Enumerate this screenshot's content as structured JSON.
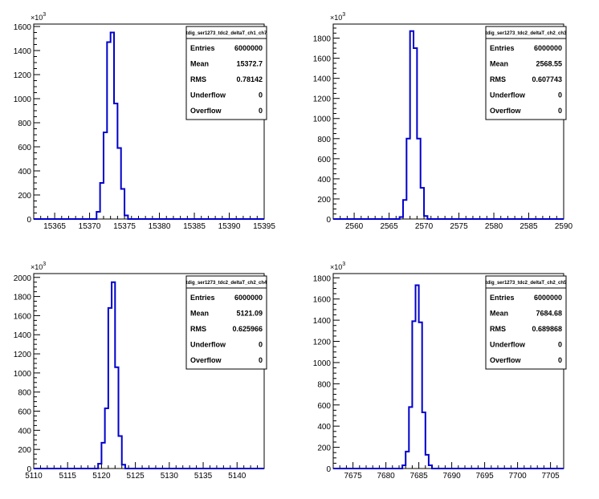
{
  "chart_data": [
    {
      "type": "histogram",
      "title": "tdig_ser1273_tdc2_deltaT_ch1_ch7",
      "y_multiplier": "×10",
      "y_exponent": "3",
      "xlim": [
        15362,
        15395
      ],
      "ylim": [
        0,
        1620
      ],
      "x_ticks": [
        15365,
        15370,
        15375,
        15380,
        15385,
        15390,
        15395
      ],
      "y_ticks": [
        0,
        200,
        400,
        600,
        800,
        1000,
        1200,
        1400,
        1600
      ],
      "bin_width": 0.5,
      "bins": [
        {
          "x": 15371.0,
          "y": 60
        },
        {
          "x": 15371.5,
          "y": 300
        },
        {
          "x": 15372.0,
          "y": 720
        },
        {
          "x": 15372.5,
          "y": 1470
        },
        {
          "x": 15373.0,
          "y": 1550
        },
        {
          "x": 15373.5,
          "y": 960
        },
        {
          "x": 15374.0,
          "y": 590
        },
        {
          "x": 15374.5,
          "y": 250
        },
        {
          "x": 15375.0,
          "y": 30
        }
      ],
      "stats": [
        {
          "label": "Entries",
          "value": "6000000"
        },
        {
          "label": "Mean",
          "value": "15372.7"
        },
        {
          "label": "RMS",
          "value": "0.78142"
        },
        {
          "label": "Underflow",
          "value": "0"
        },
        {
          "label": "Overflow",
          "value": "0"
        }
      ]
    },
    {
      "type": "histogram",
      "title": "tdig_ser1273_tdc2_deltaT_ch2_ch3",
      "y_multiplier": "×10",
      "y_exponent": "3",
      "xlim": [
        2557,
        2590
      ],
      "ylim": [
        0,
        1940
      ],
      "x_ticks": [
        2560,
        2565,
        2570,
        2575,
        2580,
        2585,
        2590
      ],
      "y_ticks": [
        0,
        200,
        400,
        600,
        800,
        1000,
        1200,
        1400,
        1600,
        1800
      ],
      "bin_width": 0.5,
      "bins": [
        {
          "x": 2566.5,
          "y": 20
        },
        {
          "x": 2567.0,
          "y": 190
        },
        {
          "x": 2567.5,
          "y": 800
        },
        {
          "x": 2568.0,
          "y": 1870
        },
        {
          "x": 2568.5,
          "y": 1700
        },
        {
          "x": 2569.0,
          "y": 800
        },
        {
          "x": 2569.5,
          "y": 310
        },
        {
          "x": 2570.0,
          "y": 30
        }
      ],
      "stats": [
        {
          "label": "Entries",
          "value": "6000000"
        },
        {
          "label": "Mean",
          "value": "2568.55"
        },
        {
          "label": "RMS",
          "value": "0.607743"
        },
        {
          "label": "Underflow",
          "value": "0"
        },
        {
          "label": "Overflow",
          "value": "0"
        }
      ]
    },
    {
      "type": "histogram",
      "title": "tdig_ser1273_tdc2_deltaT_ch2_ch4",
      "y_multiplier": "×10",
      "y_exponent": "3",
      "xlim": [
        5110,
        5144
      ],
      "ylim": [
        0,
        2040
      ],
      "x_ticks": [
        5110,
        5115,
        5120,
        5125,
        5130,
        5135,
        5140
      ],
      "y_ticks": [
        0,
        200,
        400,
        600,
        800,
        1000,
        1200,
        1400,
        1600,
        1800,
        2000
      ],
      "bin_width": 0.5,
      "bins": [
        {
          "x": 5119.5,
          "y": 50
        },
        {
          "x": 5120.0,
          "y": 270
        },
        {
          "x": 5120.5,
          "y": 630
        },
        {
          "x": 5121.0,
          "y": 1680
        },
        {
          "x": 5121.5,
          "y": 1950
        },
        {
          "x": 5122.0,
          "y": 1060
        },
        {
          "x": 5122.5,
          "y": 340
        },
        {
          "x": 5123.0,
          "y": 40
        }
      ],
      "stats": [
        {
          "label": "Entries",
          "value": "6000000"
        },
        {
          "label": "Mean",
          "value": "5121.09"
        },
        {
          "label": "RMS",
          "value": "0.625966"
        },
        {
          "label": "Underflow",
          "value": "0"
        },
        {
          "label": "Overflow",
          "value": "0"
        }
      ]
    },
    {
      "type": "histogram",
      "title": "tdig_ser1273_tdc2_deltaT_ch2_ch5",
      "y_multiplier": "×10",
      "y_exponent": "3",
      "xlim": [
        7672,
        7707
      ],
      "ylim": [
        0,
        1840
      ],
      "x_ticks": [
        7675,
        7680,
        7685,
        7690,
        7695,
        7700,
        7705
      ],
      "y_ticks": [
        0,
        200,
        400,
        600,
        800,
        1000,
        1200,
        1400,
        1600,
        1800
      ],
      "bin_width": 0.5,
      "bins": [
        {
          "x": 7682.5,
          "y": 30
        },
        {
          "x": 7683.0,
          "y": 160
        },
        {
          "x": 7683.5,
          "y": 580
        },
        {
          "x": 7684.0,
          "y": 1390
        },
        {
          "x": 7684.5,
          "y": 1730
        },
        {
          "x": 7685.0,
          "y": 1380
        },
        {
          "x": 7685.5,
          "y": 530
        },
        {
          "x": 7686.0,
          "y": 130
        },
        {
          "x": 7686.5,
          "y": 30
        }
      ],
      "stats": [
        {
          "label": "Entries",
          "value": "6000000"
        },
        {
          "label": "Mean",
          "value": "7684.68"
        },
        {
          "label": "RMS",
          "value": "0.689868"
        },
        {
          "label": "Underflow",
          "value": "0"
        },
        {
          "label": "Overflow",
          "value": "0"
        }
      ]
    }
  ],
  "colors": {
    "histogram_line": "#0000cc",
    "axis": "#000000",
    "background": "#ffffff"
  }
}
